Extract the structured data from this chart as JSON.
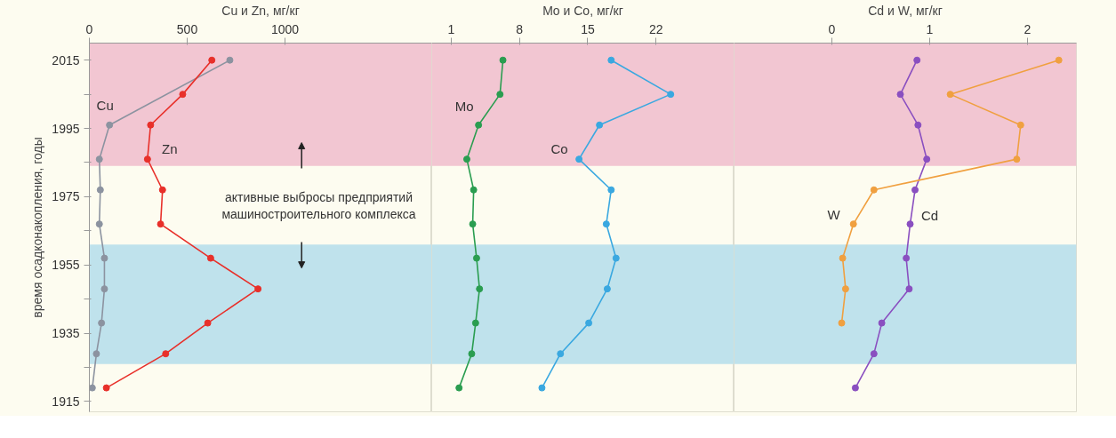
{
  "chart_data": [
    {
      "type": "line",
      "xlabel": "Cu и Zn, мг/кг",
      "ylabel": "время осадконакопления, годы",
      "xlim": [
        0,
        1750
      ],
      "xticks": [
        0,
        500,
        1000
      ],
      "ylim": [
        1912,
        2020
      ],
      "yticks": [
        1915,
        {
          "value": 1925,
          "label": null
        },
        1935,
        {
          "value": 1945,
          "label": null
        },
        1955,
        {
          "value": 1965,
          "label": null
        },
        1975,
        {
          "value": 1985,
          "label": null
        },
        1995,
        {
          "value": 2005,
          "label": null
        },
        2015
      ],
      "marker": "circle",
      "annotations": [
        "активные выбросы предприятий\nмашиностроительного комплекса"
      ],
      "bands": [
        {
          "axis": "y",
          "from": 1984,
          "to": 2020,
          "color": "#f2c6d2"
        },
        {
          "axis": "y",
          "from": 1926,
          "to": 1961,
          "color": "#bfe2ec"
        }
      ],
      "series": [
        {
          "name": "Cu",
          "color": "#8c93a0",
          "x": [
            718,
            103,
            51,
            56,
            51,
            77,
            77,
            62,
            36,
            15
          ],
          "values": [
            2015,
            1996,
            1986,
            1977,
            1967,
            1957,
            1948,
            1938,
            1929,
            1919
          ]
        },
        {
          "name": "Zn",
          "color": "#e8302a",
          "x": [
            626,
            477,
            313,
            297,
            374,
            364,
            620,
            862,
            605,
            390,
            87
          ],
          "values": [
            2015,
            2005,
            1996,
            1986,
            1977,
            1967,
            1957,
            1948,
            1938,
            1929,
            1919
          ]
        }
      ]
    },
    {
      "type": "line",
      "xlabel": "Mo и Co, мг/кг",
      "xlim": [
        -1,
        30
      ],
      "xticks": [
        1,
        8,
        15,
        22
      ],
      "ylim": [
        1912,
        2020
      ],
      "tick_labels": "x",
      "marker": "circle",
      "bands": [
        {
          "axis": "y",
          "from": 1984,
          "to": 2020,
          "color": "#f2c6d2"
        },
        {
          "axis": "y",
          "from": 1926,
          "to": 1961,
          "color": "#bfe2ec"
        }
      ],
      "series": [
        {
          "name": "Mo",
          "color": "#2a9d50",
          "x": [
            6.3,
            6.0,
            3.8,
            2.6,
            3.3,
            3.2,
            3.6,
            3.9,
            3.5,
            3.1,
            1.8
          ],
          "values": [
            2015,
            2005,
            1996,
            1986,
            1977,
            1967,
            1957,
            1948,
            1938,
            1929,
            1919
          ]
        },
        {
          "name": "Co",
          "color": "#3aa8e0",
          "x": [
            17.4,
            23.5,
            16.2,
            14.1,
            17.4,
            16.9,
            17.9,
            17.0,
            15.1,
            12.2,
            10.3
          ],
          "values": [
            2015,
            2005,
            1996,
            1986,
            1977,
            1967,
            1957,
            1948,
            1938,
            1929,
            1919
          ]
        }
      ]
    },
    {
      "type": "line",
      "xlabel": "Cd и W, мг/кг",
      "xlim": [
        -1,
        2.5
      ],
      "xticks": [
        0,
        1,
        2
      ],
      "ylim": [
        1912,
        2020
      ],
      "tick_labels": "x",
      "marker": "circle",
      "bands": [
        {
          "axis": "y",
          "from": 1984,
          "to": 2020,
          "color": "#f2c6d2"
        },
        {
          "axis": "y",
          "from": 1926,
          "to": 1961,
          "color": "#bfe2ec"
        }
      ],
      "series": [
        {
          "name": "Cd",
          "color": "#8a4fc0",
          "x": [
            0.87,
            0.7,
            0.88,
            0.97,
            0.85,
            0.8,
            0.76,
            0.79,
            0.51,
            0.43,
            0.24
          ],
          "values": [
            2015,
            2005,
            1996,
            1986,
            1977,
            1967,
            1957,
            1948,
            1938,
            1929,
            1919
          ]
        },
        {
          "name": "W",
          "color": "#f0a040",
          "x": [
            2.32,
            1.21,
            1.93,
            1.89,
            0.43,
            0.22,
            0.11,
            0.14,
            0.1
          ],
          "values": [
            2015,
            2005,
            1996,
            1986,
            1977,
            1967,
            1957,
            1948,
            1938
          ]
        }
      ]
    }
  ]
}
